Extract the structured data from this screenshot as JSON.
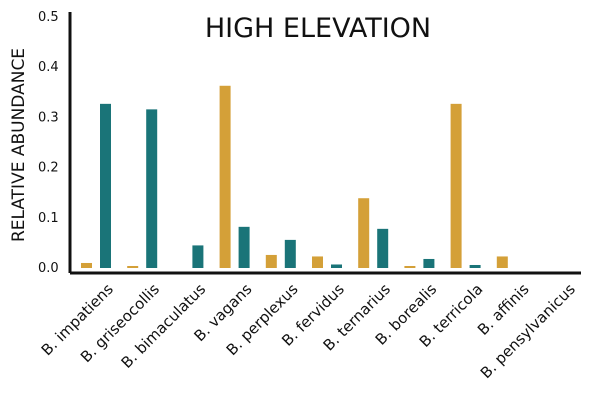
{
  "chart_data": {
    "type": "bar",
    "title": "HIGH ELEVATION",
    "ylabel": "RELATIVE ABUNDANCE",
    "xlabel": "",
    "ylim": [
      0,
      0.5
    ],
    "yticks": [
      "0.0",
      "0.1",
      "0.2",
      "0.3",
      "0.4",
      "0.5"
    ],
    "categories": [
      "B. impatiens",
      "B. griseocollis",
      "B. bimaculatus",
      "B. vagans",
      "B. perplexus",
      "B. fervidus",
      "B. ternarius",
      "B. borealis",
      "B. terricola",
      "B. affinis",
      "B. pensylvanicus"
    ],
    "series": [
      {
        "color": "#D4A038",
        "values": [
          0.01,
          0.004,
          0.0,
          0.363,
          0.026,
          0.023,
          0.139,
          0.004,
          0.327,
          0.023,
          0.0
        ]
      },
      {
        "color": "#1A7478",
        "values": [
          0.327,
          0.316,
          0.045,
          0.082,
          0.056,
          0.007,
          0.078,
          0.018,
          0.006,
          0.0,
          0.0
        ]
      }
    ],
    "grid": false,
    "legend": "none"
  }
}
